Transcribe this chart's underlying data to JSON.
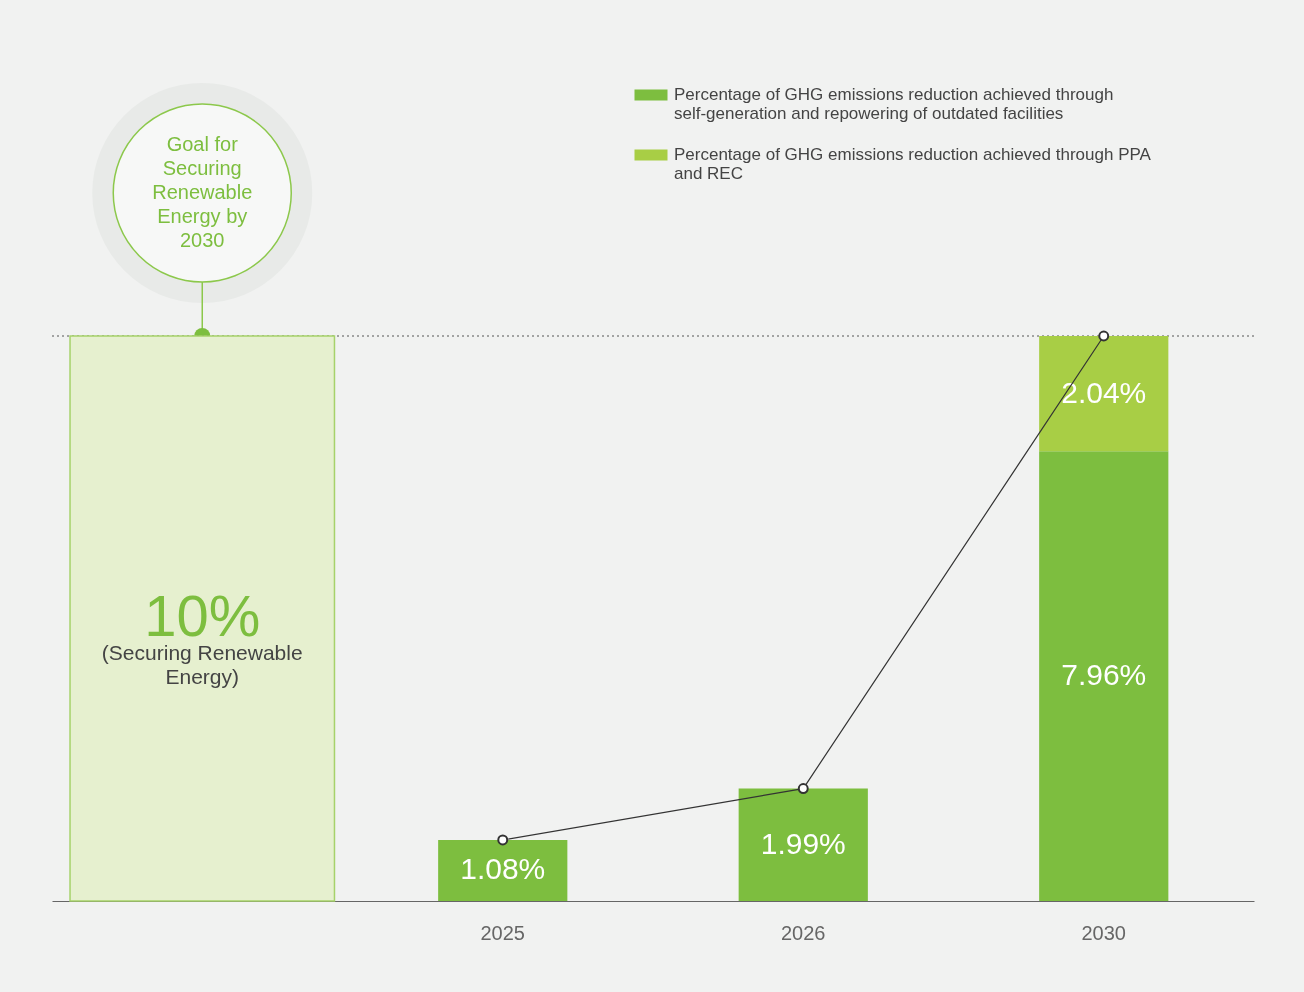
{
  "chart_data": {
    "type": "bar",
    "stacked": true,
    "categories": [
      null,
      "2025",
      "2026",
      "2030"
    ],
    "ylim": [
      0,
      10
    ],
    "tick_labels": "x",
    "legend": "top right",
    "marker": "circle",
    "series": [
      {
        "color": "#e6f0cf",
        "values": [
          10,
          null,
          null,
          null
        ],
        "value_labels": [
          "10%",
          null,
          null,
          null
        ]
      },
      {
        "name": "Percentage of GHG emissions reduction achieved through self-generation and repowering of outdated facilities",
        "color": "#7dbe3f",
        "values": [
          null,
          1.08,
          1.99,
          7.96
        ],
        "value_labels": [
          null,
          "1.08%",
          "1.99%",
          "7.96%"
        ]
      },
      {
        "name": "Percentage of GHG emissions reduction achieved through PPA and REC",
        "color": "#a8ce45",
        "values": [
          null,
          null,
          null,
          2.04
        ],
        "value_labels": [
          null,
          null,
          null,
          "2.04%"
        ]
      },
      {
        "type": "line",
        "color": "#333333",
        "values": [
          null,
          1.08,
          1.99,
          10
        ]
      }
    ],
    "ref_lines": [
      {
        "axis": "y",
        "value": 10,
        "line_style": "dotted"
      }
    ],
    "annotations": [
      "Goal for Securing Renewable Energy by 2030",
      "(Securing Renewable Energy)"
    ]
  }
}
